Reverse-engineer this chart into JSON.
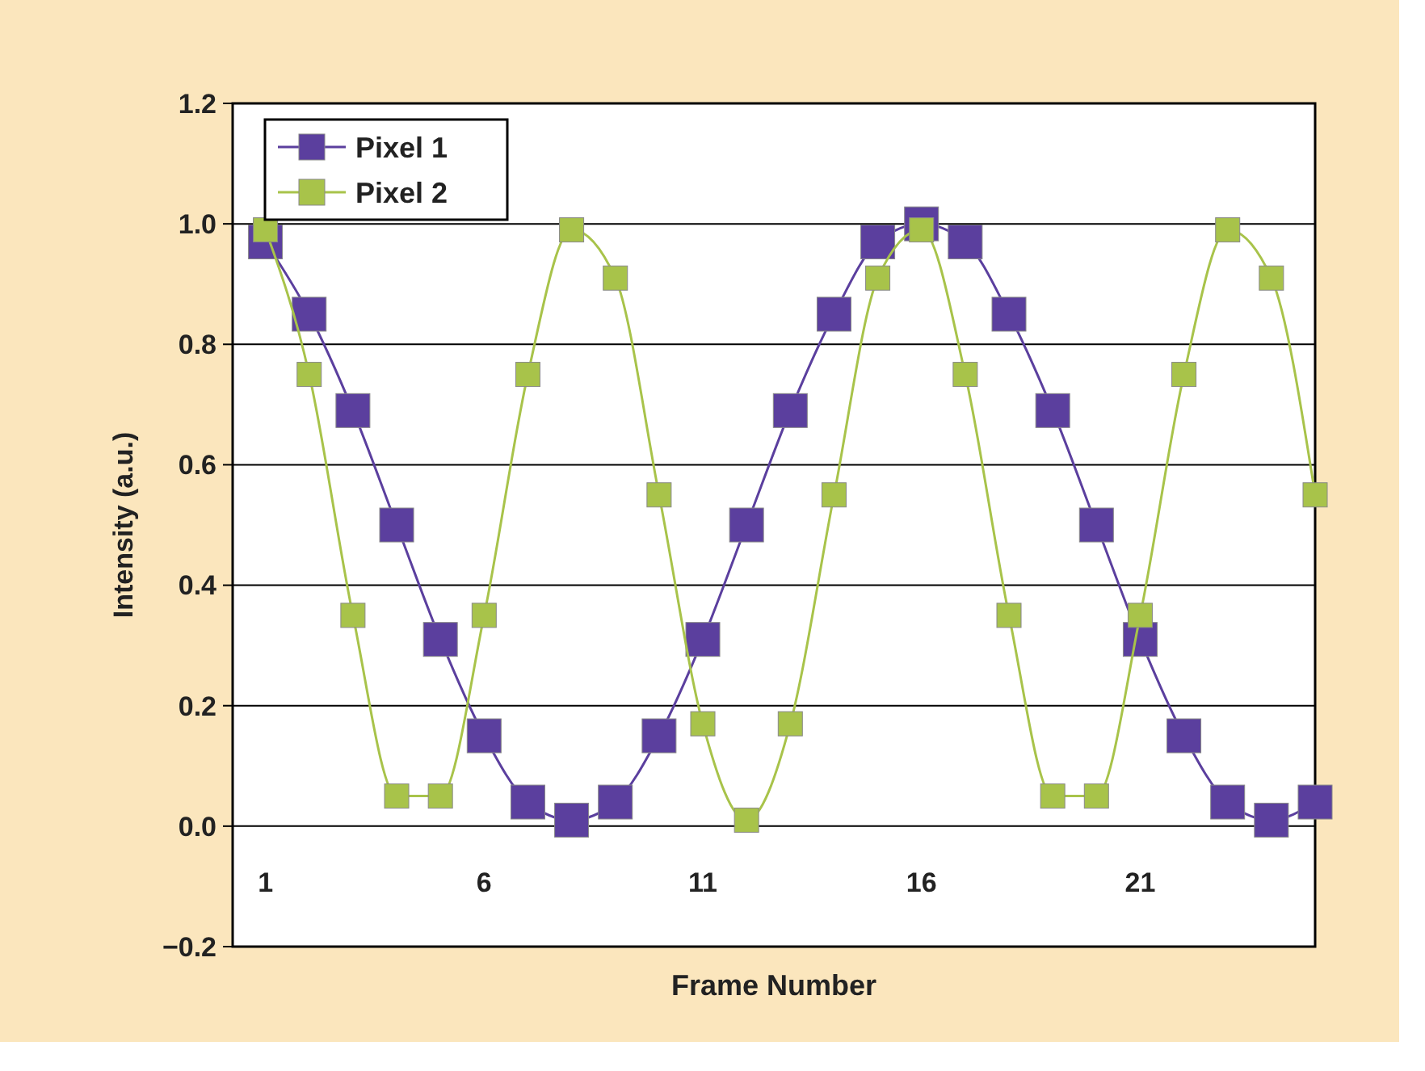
{
  "chart_data": {
    "type": "line",
    "xlabel": "Frame Number",
    "ylabel": "Intensity (a.u.)",
    "x": [
      1,
      2,
      3,
      4,
      5,
      6,
      7,
      8,
      9,
      10,
      11,
      12,
      13,
      14,
      15,
      16,
      17,
      18,
      19,
      20,
      21,
      22,
      23,
      24,
      25
    ],
    "xlim": [
      0.25,
      25
    ],
    "xticks": [
      1,
      6,
      11,
      16,
      21
    ],
    "ylim": [
      -0.2,
      1.2
    ],
    "yticks": [
      {
        "value": -0.2,
        "label": "−0.2"
      },
      {
        "value": 0,
        "label": "0.0"
      },
      {
        "value": 0.2,
        "label": "0.2"
      },
      {
        "value": 0.4,
        "label": "0.4"
      },
      {
        "value": 0.6,
        "label": "0.6"
      },
      {
        "value": 0.8,
        "label": "0.8"
      },
      {
        "value": 1,
        "label": "1.0"
      },
      {
        "value": 1.2,
        "label": "1.2"
      }
    ],
    "grid": "y",
    "legend": "top left",
    "marker": "square",
    "line_style": "solid",
    "series": [
      {
        "name": "Pixel 1",
        "color": "#5b3f9e",
        "values": [
          0.97,
          0.85,
          0.69,
          0.5,
          0.31,
          0.15,
          0.04,
          0.01,
          0.04,
          0.15,
          0.31,
          0.5,
          0.69,
          0.85,
          0.97,
          1.0,
          0.97,
          0.85,
          0.69,
          0.5,
          0.31,
          0.15,
          0.04,
          0.01,
          0.04
        ]
      },
      {
        "name": "Pixel 2",
        "color": "#a8c34a",
        "values": [
          0.99,
          0.75,
          0.35,
          0.05,
          0.05,
          0.35,
          0.75,
          0.99,
          0.91,
          0.55,
          0.17,
          0.01,
          0.17,
          0.55,
          0.91,
          0.99,
          0.75,
          0.35,
          0.05,
          0.05,
          0.35,
          0.75,
          0.99,
          0.91,
          0.55
        ]
      }
    ]
  }
}
